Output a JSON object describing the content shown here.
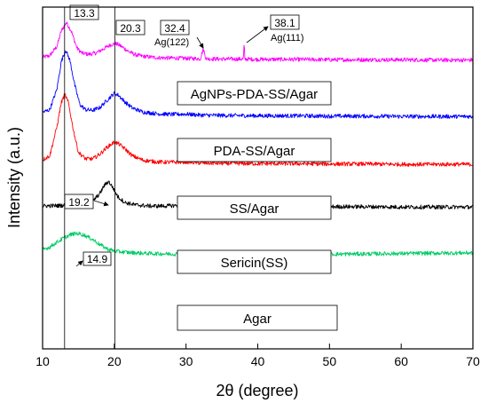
{
  "chart_data": {
    "type": "line",
    "title": "",
    "xlabel": "2θ (degree)",
    "ylabel": "Intensity (a.u.)",
    "xlim": [
      10,
      70
    ],
    "xticks": [
      10,
      20,
      30,
      40,
      50,
      60,
      70
    ],
    "yticks_shown": false,
    "grid": false,
    "legend": "none",
    "series": [
      {
        "name": "AgNPs-PDA-SS/Agar",
        "color": "#ff00ff",
        "baseline": 0.845,
        "points": [
          [
            10,
            0.853
          ],
          [
            11,
            0.858
          ],
          [
            12,
            0.885
          ],
          [
            12.6,
            0.93
          ],
          [
            13.3,
            0.955
          ],
          [
            14.0,
            0.93
          ],
          [
            14.8,
            0.88
          ],
          [
            15.5,
            0.865
          ],
          [
            16.5,
            0.862
          ],
          [
            17.5,
            0.866
          ],
          [
            18.5,
            0.878
          ],
          [
            19.5,
            0.89
          ],
          [
            20.3,
            0.893
          ],
          [
            21.0,
            0.885
          ],
          [
            22,
            0.87
          ],
          [
            23,
            0.86
          ],
          [
            24,
            0.856
          ],
          [
            26,
            0.852
          ],
          [
            28,
            0.851
          ],
          [
            30,
            0.85
          ],
          [
            32,
            0.849
          ],
          [
            32.4,
            0.878
          ],
          [
            32.8,
            0.849
          ],
          [
            35,
            0.848
          ],
          [
            38.0,
            0.848
          ],
          [
            38.1,
            0.895
          ],
          [
            38.2,
            0.848
          ],
          [
            40,
            0.847
          ],
          [
            45,
            0.847
          ],
          [
            50,
            0.846
          ],
          [
            55,
            0.846
          ],
          [
            60,
            0.846
          ],
          [
            65,
            0.845
          ],
          [
            70,
            0.845
          ]
        ]
      },
      {
        "name": "PDA-SS/Agar",
        "color": "#0000ff",
        "baseline": 0.68,
        "points": [
          [
            10,
            0.692
          ],
          [
            11,
            0.7
          ],
          [
            12,
            0.76
          ],
          [
            12.6,
            0.84
          ],
          [
            13.2,
            0.875
          ],
          [
            13.8,
            0.845
          ],
          [
            14.5,
            0.77
          ],
          [
            15.2,
            0.715
          ],
          [
            16,
            0.7
          ],
          [
            17,
            0.698
          ],
          [
            18,
            0.706
          ],
          [
            19,
            0.728
          ],
          [
            20,
            0.748
          ],
          [
            20.6,
            0.742
          ],
          [
            21.5,
            0.722
          ],
          [
            22.5,
            0.705
          ],
          [
            24,
            0.693
          ],
          [
            26,
            0.688
          ],
          [
            28,
            0.686
          ],
          [
            30,
            0.687
          ],
          [
            32,
            0.684
          ],
          [
            35,
            0.683
          ],
          [
            40,
            0.682
          ],
          [
            45,
            0.682
          ],
          [
            50,
            0.681
          ],
          [
            55,
            0.681
          ],
          [
            60,
            0.68
          ],
          [
            65,
            0.68
          ],
          [
            70,
            0.68
          ]
        ]
      },
      {
        "name": "SS/Agar",
        "color": "#ff0000",
        "baseline": 0.54,
        "points": [
          [
            10,
            0.553
          ],
          [
            11,
            0.565
          ],
          [
            12,
            0.65
          ],
          [
            12.6,
            0.72
          ],
          [
            13.1,
            0.745
          ],
          [
            13.6,
            0.72
          ],
          [
            14.3,
            0.64
          ],
          [
            15.0,
            0.575
          ],
          [
            16,
            0.556
          ],
          [
            17,
            0.556
          ],
          [
            18,
            0.57
          ],
          [
            19,
            0.59
          ],
          [
            20,
            0.605
          ],
          [
            20.6,
            0.6
          ],
          [
            21.5,
            0.585
          ],
          [
            22.5,
            0.565
          ],
          [
            24,
            0.552
          ],
          [
            26,
            0.547
          ],
          [
            28,
            0.546
          ],
          [
            30,
            0.547
          ],
          [
            32,
            0.544
          ],
          [
            35,
            0.543
          ],
          [
            40,
            0.542
          ],
          [
            45,
            0.542
          ],
          [
            50,
            0.541
          ],
          [
            55,
            0.541
          ],
          [
            60,
            0.54
          ],
          [
            65,
            0.54
          ],
          [
            70,
            0.54
          ]
        ]
      },
      {
        "name": "Sericin(SS)",
        "color": "#000000",
        "baseline": 0.415,
        "points": [
          [
            10,
            0.418
          ],
          [
            12,
            0.419
          ],
          [
            14,
            0.421
          ],
          [
            16,
            0.425
          ],
          [
            17,
            0.432
          ],
          [
            18,
            0.455
          ],
          [
            18.6,
            0.478
          ],
          [
            19.2,
            0.49
          ],
          [
            19.8,
            0.472
          ],
          [
            20.5,
            0.445
          ],
          [
            21.5,
            0.428
          ],
          [
            23,
            0.421
          ],
          [
            25,
            0.418
          ],
          [
            27,
            0.418
          ],
          [
            29,
            0.42
          ],
          [
            31,
            0.425
          ],
          [
            33,
            0.42
          ],
          [
            35,
            0.418
          ],
          [
            40,
            0.417
          ],
          [
            45,
            0.417
          ],
          [
            50,
            0.416
          ],
          [
            55,
            0.416
          ],
          [
            60,
            0.415
          ],
          [
            65,
            0.415
          ],
          [
            70,
            0.415
          ]
        ]
      },
      {
        "name": "Agar",
        "color": "#00cc66",
        "baseline": 0.28,
        "points": [
          [
            10,
            0.29
          ],
          [
            11,
            0.298
          ],
          [
            12,
            0.312
          ],
          [
            13,
            0.325
          ],
          [
            14,
            0.335
          ],
          [
            14.9,
            0.338
          ],
          [
            15.8,
            0.333
          ],
          [
            17,
            0.32
          ],
          [
            18,
            0.305
          ],
          [
            19,
            0.293
          ],
          [
            20,
            0.286
          ],
          [
            22,
            0.282
          ],
          [
            25,
            0.279
          ],
          [
            30,
            0.277
          ],
          [
            35,
            0.276
          ],
          [
            40,
            0.276
          ],
          [
            45,
            0.276
          ],
          [
            50,
            0.277
          ],
          [
            55,
            0.278
          ],
          [
            60,
            0.279
          ],
          [
            65,
            0.28
          ],
          [
            70,
            0.281
          ]
        ]
      }
    ],
    "sample_labels": [
      "AgNPs-PDA-SS/Agar",
      "PDA-SS/Agar",
      "SS/Agar",
      "Sericin(SS)",
      "Agar"
    ],
    "reference_lines": [
      13.3,
      20.3
    ],
    "annotations": [
      {
        "text": "13.3",
        "x": 13.3
      },
      {
        "text": "20.3",
        "x": 20.3
      },
      {
        "text": "32.4",
        "sub": "Ag(122)",
        "x": 32.4
      },
      {
        "text": "38.1",
        "sub": "Ag(111)",
        "x": 38.1
      },
      {
        "text": "19.2",
        "x": 19.2
      },
      {
        "text": "14.9",
        "x": 14.9
      }
    ]
  }
}
